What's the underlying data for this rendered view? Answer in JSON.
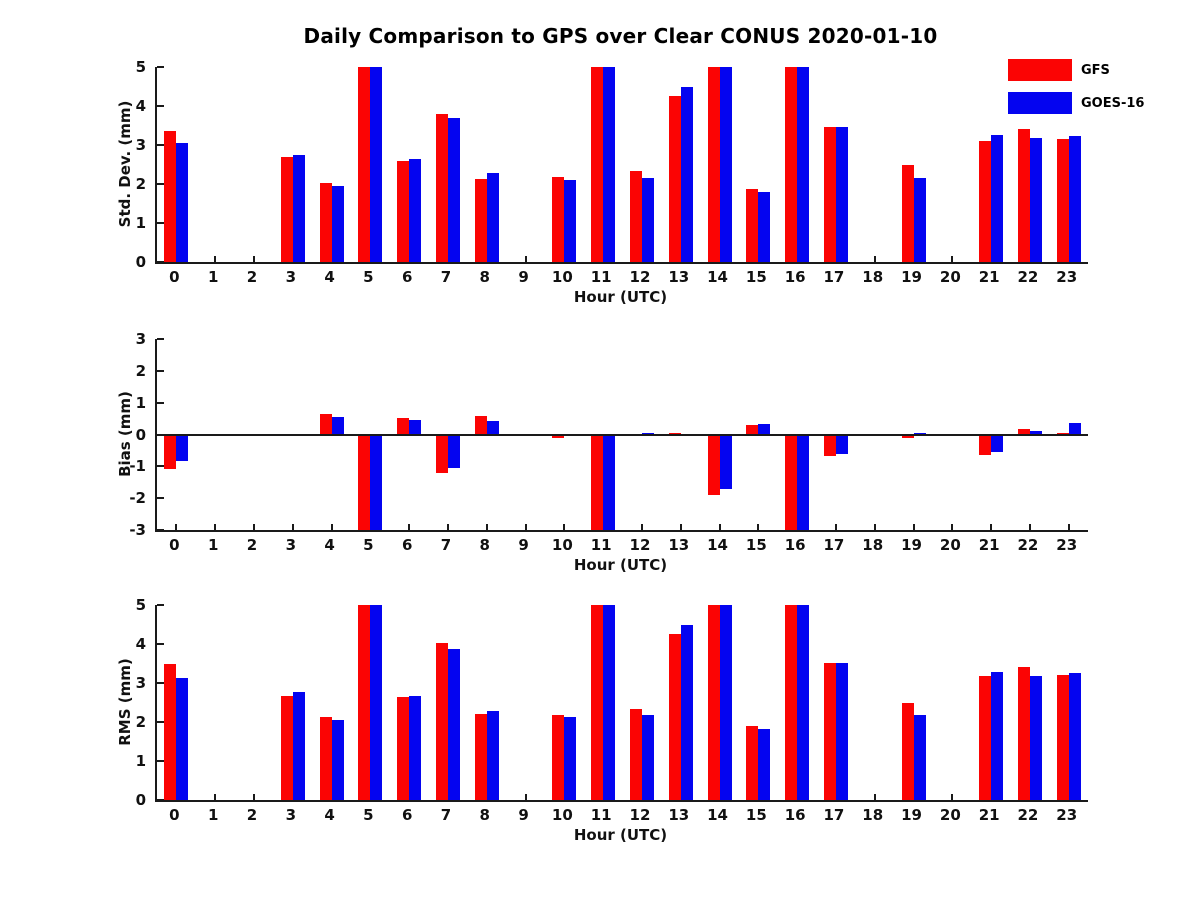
{
  "figure": {
    "title": "Daily Comparison to GPS over Clear CONUS 2020-01-10",
    "background": "#ffffff",
    "axis_color": "#1a1a1a"
  },
  "legend": {
    "position": "top-right",
    "items": [
      {
        "label": "GFS",
        "color": "#fb0404"
      },
      {
        "label": "GOES-16",
        "color": "#0404f0"
      }
    ]
  },
  "chart_data": [
    {
      "type": "bar",
      "title": "",
      "ylabel": "Std. Dev. (mm)",
      "xlabel": "Hour (UTC)",
      "ylim": [
        0,
        5
      ],
      "yticks": [
        0,
        1,
        2,
        3,
        4,
        5
      ],
      "grid": false,
      "categories": [
        "0",
        "1",
        "2",
        "3",
        "4",
        "5",
        "6",
        "7",
        "8",
        "9",
        "10",
        "11",
        "12",
        "13",
        "14",
        "15",
        "16",
        "17",
        "18",
        "19",
        "20",
        "21",
        "22",
        "23"
      ],
      "series": [
        {
          "name": "GFS",
          "color": "#fb0404",
          "values": [
            3.35,
            0,
            0,
            2.7,
            2.02,
            5.0,
            2.58,
            3.8,
            2.12,
            0,
            2.17,
            5.0,
            2.33,
            4.25,
            5.0,
            1.88,
            5.0,
            3.46,
            0,
            2.48,
            0,
            3.1,
            3.42,
            3.16
          ]
        },
        {
          "name": "GOES-16",
          "color": "#0404f0",
          "values": [
            3.05,
            0,
            0,
            2.75,
            1.95,
            5.0,
            2.63,
            3.7,
            2.28,
            0,
            2.1,
            5.0,
            2.15,
            4.5,
            5.0,
            1.8,
            5.0,
            3.46,
            0,
            2.15,
            0,
            3.26,
            3.17,
            3.23
          ]
        }
      ]
    },
    {
      "type": "bar",
      "title": "",
      "ylabel": "Bias (mm)",
      "xlabel": "Hour (UTC)",
      "ylim": [
        -3,
        3
      ],
      "yticks": [
        -3,
        -2,
        -1,
        0,
        1,
        2,
        3
      ],
      "grid": false,
      "zero_line": true,
      "categories": [
        "0",
        "1",
        "2",
        "3",
        "4",
        "5",
        "6",
        "7",
        "8",
        "9",
        "10",
        "11",
        "12",
        "13",
        "14",
        "15",
        "16",
        "17",
        "18",
        "19",
        "20",
        "21",
        "22",
        "23"
      ],
      "series": [
        {
          "name": "GFS",
          "color": "#fb0404",
          "values": [
            -1.08,
            0,
            0,
            0.03,
            0.65,
            -3.0,
            0.53,
            -1.2,
            0.57,
            0,
            -0.1,
            -3.0,
            0.03,
            0.04,
            -1.9,
            0.3,
            -3.0,
            -0.66,
            0,
            -0.12,
            0,
            -0.63,
            0.18,
            0.04
          ]
        },
        {
          "name": "GOES-16",
          "color": "#0404f0",
          "values": [
            -0.82,
            0,
            0,
            0,
            0.55,
            -3.0,
            0.45,
            -1.05,
            0.42,
            0,
            -0.05,
            -3.0,
            0.04,
            0,
            -1.7,
            0.32,
            -3.0,
            -0.62,
            0,
            0.04,
            0,
            -0.56,
            0.1,
            0.35
          ]
        }
      ]
    },
    {
      "type": "bar",
      "title": "",
      "ylabel": "RMS (mm)",
      "xlabel": "Hour (UTC)",
      "ylim": [
        0,
        5
      ],
      "yticks": [
        0,
        1,
        2,
        3,
        4,
        5
      ],
      "grid": false,
      "categories": [
        "0",
        "1",
        "2",
        "3",
        "4",
        "5",
        "6",
        "7",
        "8",
        "9",
        "10",
        "11",
        "12",
        "13",
        "14",
        "15",
        "16",
        "17",
        "18",
        "19",
        "20",
        "21",
        "22",
        "23"
      ],
      "series": [
        {
          "name": "GFS",
          "color": "#fb0404",
          "values": [
            3.5,
            0,
            0,
            2.67,
            2.12,
            5.0,
            2.65,
            4.02,
            2.2,
            0,
            2.18,
            5.0,
            2.33,
            4.25,
            5.0,
            1.9,
            5.0,
            3.52,
            0,
            2.48,
            0,
            3.18,
            3.42,
            3.2
          ]
        },
        {
          "name": "GOES-16",
          "color": "#0404f0",
          "values": [
            3.12,
            0,
            0,
            2.77,
            2.04,
            5.0,
            2.66,
            3.87,
            2.28,
            0,
            2.12,
            5.0,
            2.18,
            4.5,
            5.0,
            1.83,
            5.0,
            3.52,
            0,
            2.17,
            0,
            3.28,
            3.17,
            3.25
          ]
        }
      ]
    }
  ]
}
